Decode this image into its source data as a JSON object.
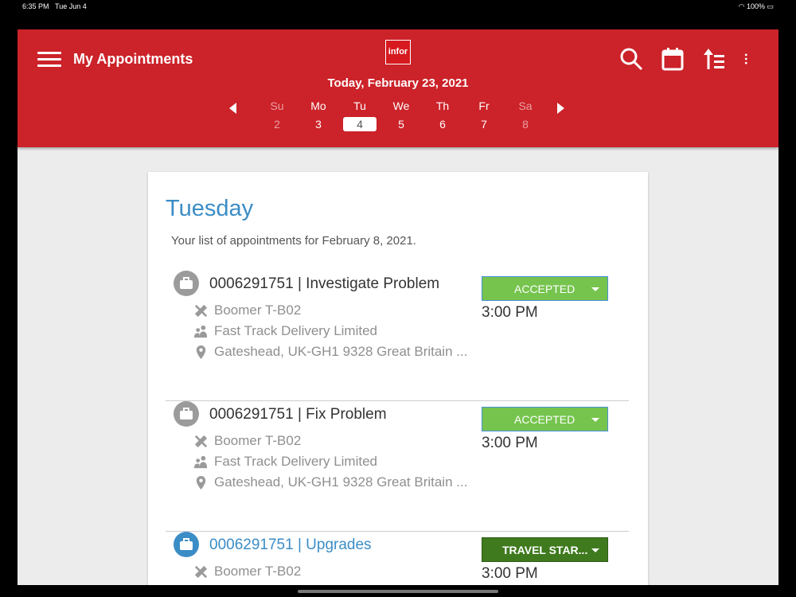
{
  "status": {
    "time": "6:35 PM",
    "date": "Tue Jun 4",
    "battery": "100%"
  },
  "header": {
    "title": "My Appointments",
    "logo": "infor",
    "today": "Today, February 23, 2021",
    "days": [
      {
        "d": "Su",
        "n": "2",
        "dim": true
      },
      {
        "d": "Mo",
        "n": "3"
      },
      {
        "d": "Tu",
        "n": "4",
        "selected": true
      },
      {
        "d": "We",
        "n": "5"
      },
      {
        "d": "Th",
        "n": "6"
      },
      {
        "d": "Fr",
        "n": "7"
      },
      {
        "d": "Sa",
        "n": "8",
        "dim": true
      }
    ],
    "icons": [
      "search-icon",
      "calendar-icon",
      "sort-icon",
      "more-icon"
    ],
    "color": "#cc2229"
  },
  "main": {
    "day_title": "Tuesday",
    "subtitle": "Your list of appointments for February 8, 2021.",
    "appointments": [
      {
        "title": "0006291751 | Investigate Problem",
        "equipment": "Boomer T-B02",
        "customer": "Fast Track Delivery Limited",
        "address": "Gateshead, UK-GH1 9328 Great Britain ...",
        "status": "ACCEPTED",
        "status_color": "#76c44e",
        "time": "3:00 PM"
      },
      {
        "title": "0006291751 | Fix Problem",
        "equipment": "Boomer T-B02",
        "customer": "Fast Track Delivery Limited",
        "address": "Gateshead, UK-GH1 9328 Great Britain ...",
        "status": "ACCEPTED",
        "status_color": "#76c44e",
        "time": "3:00 PM"
      },
      {
        "title": "0006291751 | Upgrades",
        "equipment": "Boomer T-B02",
        "customer": "",
        "address": "",
        "status": "TRAVEL STAR...",
        "status_color": "#3f7a1e",
        "time": "3:00 PM",
        "active": true
      }
    ]
  }
}
